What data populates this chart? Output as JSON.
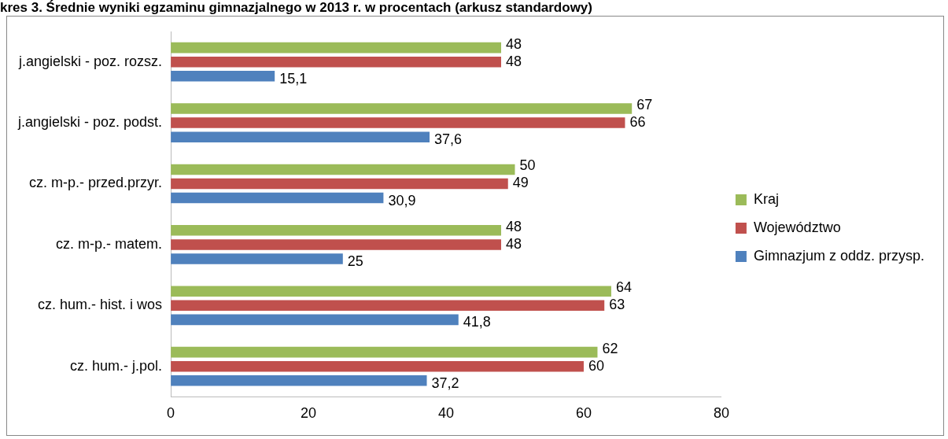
{
  "chart_data": {
    "type": "bar",
    "orientation": "horizontal",
    "title": "kres 3. Średnie wyniki egzaminu gimnazjalnego w 2013 r. w procentach (arkusz standardowy)",
    "categories": [
      "j.angielski - poz. rozsz.",
      "j.angielski - poz. podst.",
      "cz. m-p.- przed.przyr.",
      "cz. m-p.- matem.",
      "cz. hum.- hist. i wos",
      "cz. hum.- j.pol."
    ],
    "series": [
      {
        "name": "Kraj",
        "color": "#9bbb59",
        "values": [
          48,
          67,
          50,
          48,
          64,
          62
        ]
      },
      {
        "name": "Województwo",
        "color": "#c0504d",
        "values": [
          48,
          66,
          49,
          48,
          63,
          60
        ]
      },
      {
        "name": "Gimnazjum z oddz. przysp.",
        "color": "#4f81bd",
        "values": [
          15.1,
          37.6,
          30.9,
          25,
          41.8,
          37.2
        ],
        "value_labels": [
          "15,1",
          "37,6",
          "30,9",
          "25",
          "41,8",
          "37,2"
        ]
      }
    ],
    "xlim": [
      0,
      80
    ],
    "xticks": [
      0,
      20,
      40,
      60,
      80
    ],
    "grid": false,
    "legend": "right",
    "data_labels": true
  }
}
